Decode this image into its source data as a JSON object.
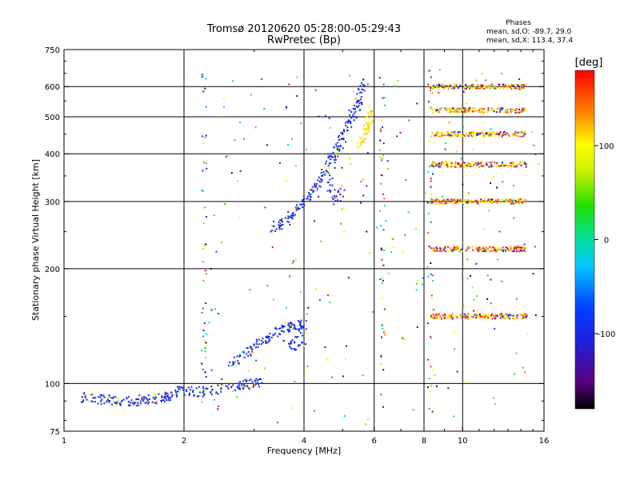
{
  "chart_data": {
    "type": "scatter",
    "title": "Tromsø 20120620 05:28:00-05:29:43",
    "subtitle": "RwPretec (Bp)",
    "xlabel": "Frequency [MHz]",
    "ylabel": "Stationary phase Virtual Height [km]",
    "xscale": "log",
    "yscale": "log",
    "xlim": [
      1,
      16
    ],
    "ylim": [
      75,
      750
    ],
    "x_ticks": [
      1,
      2,
      4,
      6,
      8,
      10,
      16
    ],
    "x_tick_labels": [
      "1",
      "2",
      "4",
      "6",
      "8",
      "10",
      "16"
    ],
    "y_ticks": [
      75,
      100,
      200,
      300,
      400,
      500,
      600,
      750
    ],
    "y_tick_labels": [
      "75",
      "100",
      "200",
      "300",
      "400",
      "500",
      "600",
      "750"
    ],
    "x_gridlines": [
      2,
      4,
      6,
      8,
      10
    ],
    "y_gridlines": [
      100,
      200,
      300,
      400,
      500,
      600
    ],
    "grid": true,
    "phase_info": {
      "title": "Phases",
      "line1": "mean, sd,O: -89.7, 29.0",
      "line2": "mean, sd,X: 113.4, 37.4"
    },
    "colorbar": {
      "label": "[deg]",
      "range": [
        -180,
        180
      ],
      "ticks": [
        100,
        0,
        -100
      ],
      "tick_labels": [
        "100",
        "0",
        "-100"
      ]
    },
    "series": [
      {
        "name": "O-mode trace low (E region)",
        "phase_deg": -100,
        "points": [
          [
            1.1,
            92
          ],
          [
            1.2,
            91
          ],
          [
            1.3,
            91
          ],
          [
            1.4,
            90
          ],
          [
            1.5,
            90
          ],
          [
            1.6,
            91
          ],
          [
            1.7,
            91
          ],
          [
            1.8,
            92
          ],
          [
            1.9,
            95
          ],
          [
            2.0,
            96
          ],
          [
            2.2,
            95
          ],
          [
            2.4,
            96
          ],
          [
            2.6,
            98
          ],
          [
            2.8,
            99
          ],
          [
            3.0,
            100
          ],
          [
            3.1,
            102
          ]
        ]
      },
      {
        "name": "O-mode trace (E-Es spread)",
        "phase_deg": -95,
        "points": [
          [
            2.6,
            110
          ],
          [
            2.8,
            118
          ],
          [
            3.0,
            125
          ],
          [
            3.2,
            130
          ],
          [
            3.4,
            136
          ],
          [
            3.6,
            140
          ],
          [
            3.8,
            142
          ],
          [
            4.0,
            143
          ],
          [
            3.7,
            126
          ],
          [
            4.0,
            124
          ]
        ]
      },
      {
        "name": "O-mode trace (F region)",
        "phase_deg": -100,
        "points": [
          [
            3.3,
            255
          ],
          [
            3.5,
            262
          ],
          [
            3.7,
            272
          ],
          [
            3.9,
            290
          ],
          [
            4.1,
            310
          ],
          [
            4.3,
            330
          ],
          [
            4.5,
            360
          ],
          [
            4.7,
            390
          ],
          [
            4.9,
            420
          ],
          [
            5.1,
            460
          ],
          [
            5.3,
            500
          ],
          [
            5.5,
            540
          ],
          [
            5.6,
            620
          ],
          [
            4.6,
            350
          ],
          [
            4.8,
            300
          ],
          [
            5.0,
            330
          ]
        ]
      },
      {
        "name": "X-mode trace (F region)",
        "phase_deg": 110,
        "points": [
          [
            5.5,
            420
          ],
          [
            5.7,
            450
          ],
          [
            5.8,
            480
          ],
          [
            5.9,
            520
          ]
        ]
      },
      {
        "name": "Multi-hop echo band ~600 km",
        "phase_deg": 120,
        "points": [
          [
            8.3,
            600
          ],
          [
            9,
            600
          ],
          [
            10,
            600
          ],
          [
            11,
            600
          ],
          [
            12,
            600
          ],
          [
            13,
            600
          ],
          [
            14.5,
            600
          ]
        ]
      },
      {
        "name": "Multi-hop echo band ~520 km",
        "phase_deg": 120,
        "points": [
          [
            8.3,
            520
          ],
          [
            9,
            520
          ],
          [
            10,
            520
          ],
          [
            11,
            520
          ],
          [
            12,
            520
          ],
          [
            13,
            520
          ],
          [
            14.5,
            520
          ]
        ]
      },
      {
        "name": "Multi-hop echo band ~450 km",
        "phase_deg": 120,
        "points": [
          [
            8.3,
            450
          ],
          [
            9,
            450
          ],
          [
            10,
            450
          ],
          [
            11,
            450
          ],
          [
            12,
            450
          ],
          [
            13,
            450
          ],
          [
            14.5,
            450
          ]
        ]
      },
      {
        "name": "Multi-hop echo band ~375 km",
        "phase_deg": 120,
        "points": [
          [
            8.3,
            375
          ],
          [
            9,
            375
          ],
          [
            10,
            375
          ],
          [
            11,
            375
          ],
          [
            12,
            375
          ],
          [
            13,
            375
          ],
          [
            14.5,
            375
          ]
        ]
      },
      {
        "name": "Multi-hop echo band ~300 km",
        "phase_deg": 120,
        "points": [
          [
            8.3,
            300
          ],
          [
            9,
            300
          ],
          [
            10,
            300
          ],
          [
            11,
            300
          ],
          [
            12,
            300
          ],
          [
            13,
            300
          ],
          [
            14.5,
            300
          ]
        ]
      },
      {
        "name": "Multi-hop echo band ~225 km",
        "phase_deg": 130,
        "points": [
          [
            8.3,
            225
          ],
          [
            9,
            225
          ],
          [
            10,
            225
          ],
          [
            11,
            225
          ],
          [
            12,
            225
          ],
          [
            13,
            225
          ],
          [
            14.5,
            225
          ]
        ]
      },
      {
        "name": "Multi-hop echo band ~150 km",
        "phase_deg": 130,
        "points": [
          [
            8.3,
            150
          ],
          [
            9,
            150
          ],
          [
            10,
            150
          ],
          [
            11,
            150
          ],
          [
            12,
            150
          ],
          [
            13,
            150
          ],
          [
            14.5,
            150
          ]
        ]
      }
    ]
  }
}
